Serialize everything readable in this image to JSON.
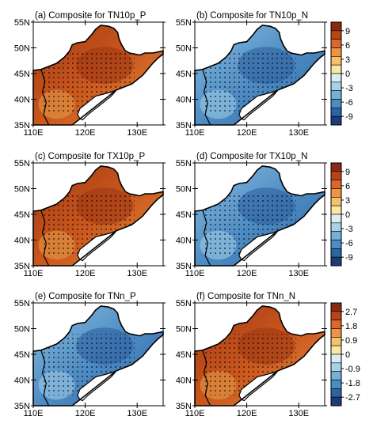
{
  "figure": {
    "lat_ticks": [
      "35N",
      "40N",
      "45N",
      "50N",
      "55N"
    ],
    "lon_ticks": [
      "110E",
      "120E",
      "130E"
    ],
    "panels": [
      {
        "id": "a",
        "title": "(a) Composite for TN10p_P",
        "field": "warm",
        "colorbar": "temp"
      },
      {
        "id": "b",
        "title": "(b) Composite for TN10p_N",
        "field": "cool",
        "colorbar": "temp"
      },
      {
        "id": "c",
        "title": "(c) Composite for TX10p_P",
        "field": "warm",
        "colorbar": "temp"
      },
      {
        "id": "d",
        "title": "(d) Composite for TX10p_N",
        "field": "cool",
        "colorbar": "temp"
      },
      {
        "id": "e",
        "title": "(e) Composite for TNn_P",
        "field": "cool",
        "colorbar": "tnn"
      },
      {
        "id": "f",
        "title": "(f) Composite for TNn_N",
        "field": "warm",
        "colorbar": "tnn"
      }
    ],
    "colorbars": {
      "temp": {
        "labels": [
          "9",
          "6",
          "3",
          "0",
          "-3",
          "-6",
          "-9"
        ]
      },
      "tnn": {
        "labels": [
          "2.7",
          "1.8",
          "0.9",
          "0",
          "-0.9",
          "-1.8",
          "-2.7"
        ]
      }
    },
    "palette": [
      "#8a2a10",
      "#b8451a",
      "#d9682a",
      "#ee9444",
      "#f5c16a",
      "#fae8a2",
      "#d7eef5",
      "#a7d3e6",
      "#74b1d6",
      "#4b8cc2",
      "#2d64a3",
      "#1b3c78"
    ],
    "colors": {
      "warm_fill": "#d26a27",
      "cool_fill": "#5e9bcc",
      "frame": "#000000",
      "bay": "#ffffff"
    }
  }
}
